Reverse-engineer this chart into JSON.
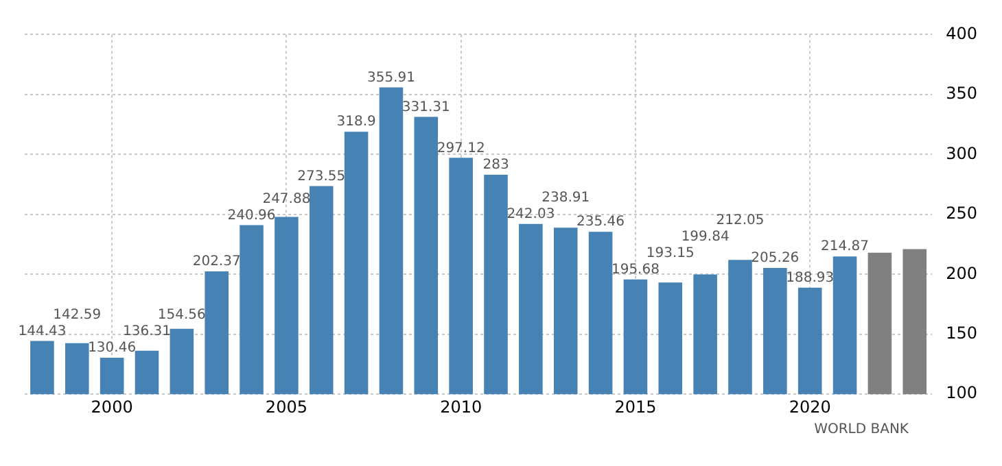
{
  "chart_data": {
    "type": "bar",
    "categories": [
      null,
      null,
      "2000",
      null,
      null,
      null,
      null,
      "2005",
      null,
      null,
      null,
      null,
      "2010",
      null,
      null,
      null,
      null,
      "2015",
      null,
      null,
      null,
      null,
      "2020",
      null,
      null,
      null
    ],
    "values": [
      144.43,
      142.59,
      130.46,
      136.31,
      154.56,
      202.37,
      240.96,
      247.88,
      273.55,
      318.9,
      355.91,
      331.31,
      297.12,
      283,
      242.03,
      238.91,
      235.46,
      195.68,
      193.15,
      199.84,
      212.05,
      205.26,
      188.93,
      214.87,
      218,
      221
    ],
    "colors": [
      "#4682b4",
      "#4682b4",
      "#4682b4",
      "#4682b4",
      "#4682b4",
      "#4682b4",
      "#4682b4",
      "#4682b4",
      "#4682b4",
      "#4682b4",
      "#4682b4",
      "#4682b4",
      "#4682b4",
      "#4682b4",
      "#4682b4",
      "#4682b4",
      "#4682b4",
      "#4682b4",
      "#4682b4",
      "#4682b4",
      "#4682b4",
      "#4682b4",
      "#4682b4",
      "#4682b4",
      "#808080",
      "#808080"
    ],
    "value_labels": [
      "144.43",
      "142.59",
      "130.46",
      "136.31",
      "154.56",
      "202.37",
      "240.96",
      "247.88",
      "273.55",
      "318.9",
      "355.91",
      "331.31",
      "297.12",
      "283",
      "242.03",
      "238.91",
      "235.46",
      "195.68",
      "193.15",
      "199.84",
      "212.05",
      "205.26",
      "188.93",
      "214.87",
      null,
      null
    ],
    "ylim": [
      100,
      400
    ],
    "yticks": [
      100,
      150,
      200,
      250,
      300,
      350,
      400
    ],
    "grid": true,
    "annotations": [
      "WORLD BANK"
    ]
  }
}
